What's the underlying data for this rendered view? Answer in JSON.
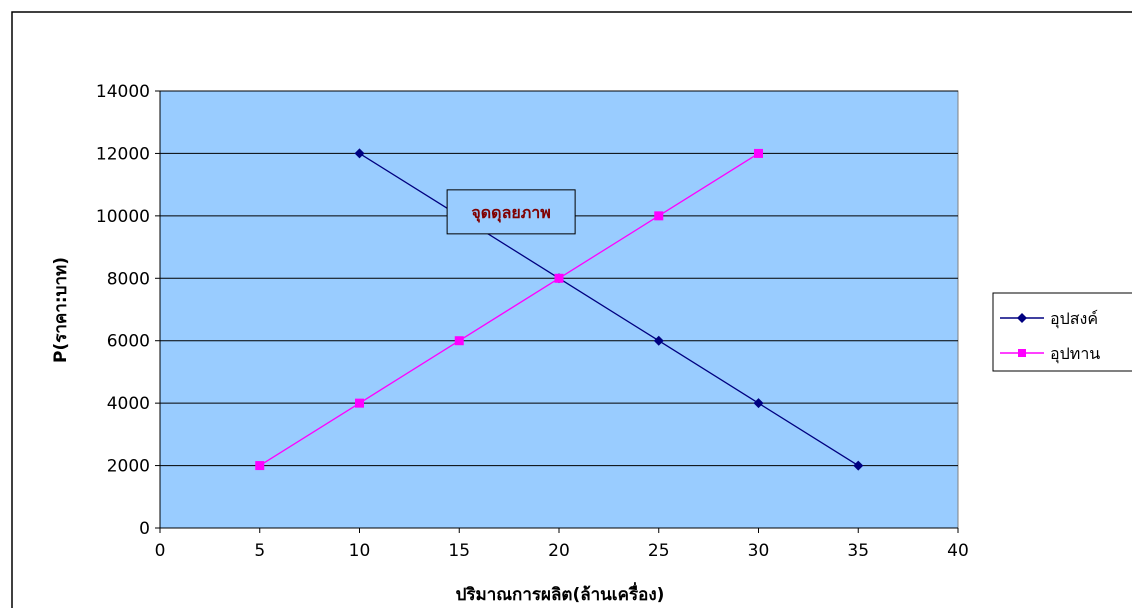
{
  "chart_data": {
    "type": "line",
    "title": "",
    "xlabel": "ปริมาณการผลิต(ล้านเครื่อง)",
    "ylabel": "P(ราคา:บาท)",
    "xlim": [
      0,
      40
    ],
    "ylim": [
      0,
      14000
    ],
    "x_ticks": [
      0,
      5,
      10,
      15,
      20,
      25,
      30,
      35,
      40
    ],
    "y_ticks": [
      0,
      2000,
      4000,
      6000,
      8000,
      10000,
      12000,
      14000
    ],
    "grid": "horizontal",
    "legend": "right",
    "series": [
      {
        "name": "อุปสงค์",
        "color": "#000080",
        "marker": "diamond",
        "points": [
          [
            10,
            12000
          ],
          [
            15,
            10000
          ],
          [
            20,
            8000
          ],
          [
            25,
            6000
          ],
          [
            30,
            4000
          ],
          [
            35,
            2000
          ]
        ]
      },
      {
        "name": "อุปทาน",
        "color": "#ff00ff",
        "marker": "square",
        "points": [
          [
            5,
            2000
          ],
          [
            10,
            4000
          ],
          [
            15,
            6000
          ],
          [
            20,
            8000
          ],
          [
            25,
            10000
          ],
          [
            30,
            12000
          ]
        ]
      }
    ],
    "annotations": [
      {
        "text": "จุดดุลยภาพ",
        "x": 17.6,
        "y": 10000
      }
    ],
    "colors": {
      "plot_background": "#99ccff",
      "annotation_text": "#800000"
    }
  }
}
